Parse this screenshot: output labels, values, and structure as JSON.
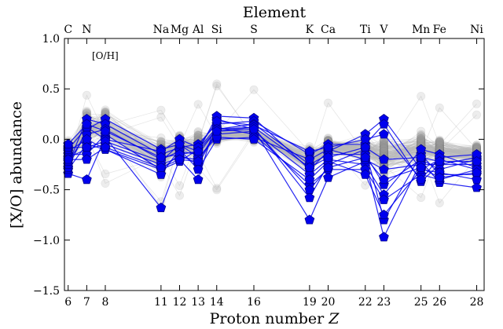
{
  "chart_data": {
    "type": "line",
    "title": "",
    "xlabel": "Proton number",
    "xlabel_var": "Z",
    "ylabel": "[X/O] abundance",
    "top_axis_label": "Element",
    "annotation": "[O/H]",
    "xlim": [
      5.8,
      28.4
    ],
    "ylim": [
      -1.5,
      1.0
    ],
    "x_ticks": [
      6,
      7,
      8,
      11,
      12,
      13,
      14,
      16,
      19,
      20,
      22,
      23,
      25,
      26,
      28
    ],
    "y_ticks": [
      -1.5,
      -1.0,
      -0.5,
      0.0,
      0.5,
      1.0
    ],
    "y_tick_labels": [
      "−1.5",
      "−1.0",
      "−0.5",
      "0.0",
      "0.5",
      "1.0"
    ],
    "top_ticks": [
      {
        "z": 6,
        "label": "C"
      },
      {
        "z": 7,
        "label": "N"
      },
      {
        "z": 11,
        "label": "Na"
      },
      {
        "z": 12,
        "label": "Mg"
      },
      {
        "z": 13,
        "label": "Al"
      },
      {
        "z": 14,
        "label": "Si"
      },
      {
        "z": 16,
        "label": "S"
      },
      {
        "z": 19,
        "label": "K"
      },
      {
        "z": 20,
        "label": "Ca"
      },
      {
        "z": 22,
        "label": "Ti"
      },
      {
        "z": 23,
        "label": "V"
      },
      {
        "z": 25,
        "label": "Mn"
      },
      {
        "z": 26,
        "label": "Fe"
      },
      {
        "z": 28,
        "label": "Ni"
      }
    ],
    "grid": false,
    "colors": {
      "highlight": "#0000ee",
      "highlight_edge": "#00008b",
      "background_line": "#b8b8b8",
      "background_marker": "#9a9a9a"
    },
    "background_population": {
      "count": 150,
      "mean": [
        -0.15,
        0.1,
        0.12,
        -0.17,
        -0.05,
        -0.1,
        0.05,
        0.05,
        -0.22,
        -0.08,
        -0.1,
        -0.16,
        -0.1,
        -0.12,
        -0.15
      ],
      "spread": [
        0.12,
        0.18,
        0.17,
        0.16,
        0.08,
        0.14,
        0.08,
        0.07,
        0.14,
        0.09,
        0.13,
        0.17,
        0.16,
        0.11,
        0.11
      ]
    },
    "highlighted_series": [
      {
        "values": [
          -0.34,
          -0.4,
          0.02,
          -0.68,
          -0.2,
          -0.4,
          0.2,
          0.1,
          -0.8,
          -0.38,
          -0.22,
          -0.97,
          -0.22,
          -0.43,
          -0.48
        ]
      },
      {
        "values": [
          -0.3,
          -0.05,
          -0.1,
          -0.3,
          -0.15,
          -0.25,
          0.08,
          0.12,
          -0.58,
          -0.25,
          -0.1,
          -0.8,
          -0.15,
          -0.35,
          -0.35
        ]
      },
      {
        "values": [
          -0.28,
          0.1,
          0.2,
          -0.1,
          -0.05,
          -0.12,
          0.23,
          0.21,
          -0.3,
          -0.12,
          0.05,
          0.2,
          -0.3,
          -0.2,
          -0.3
        ]
      },
      {
        "values": [
          -0.25,
          0.2,
          0.15,
          -0.15,
          -0.08,
          -0.05,
          0.15,
          0.18,
          -0.15,
          -0.05,
          -0.05,
          0.15,
          -0.42,
          -0.25,
          -0.25
        ]
      },
      {
        "values": [
          -0.22,
          0.05,
          0.1,
          -0.2,
          -0.12,
          -0.15,
          0.1,
          0.15,
          -0.25,
          -0.15,
          -0.15,
          -0.45,
          -0.2,
          -0.3,
          -0.2
        ]
      },
      {
        "values": [
          -0.18,
          -0.1,
          -0.05,
          -0.25,
          -0.18,
          -0.2,
          0.05,
          0.08,
          -0.35,
          -0.2,
          -0.25,
          -0.55,
          -0.1,
          -0.15,
          -0.28
        ]
      },
      {
        "values": [
          -0.15,
          -0.15,
          0.05,
          -0.3,
          -0.22,
          -0.1,
          0.12,
          0.05,
          -0.45,
          -0.3,
          -0.3,
          -0.6,
          -0.35,
          -0.4,
          -0.3
        ]
      },
      {
        "values": [
          -0.12,
          0.0,
          -0.1,
          -0.35,
          -0.1,
          -0.3,
          0.0,
          0.02,
          -0.2,
          -0.1,
          -0.2,
          -0.3,
          -0.25,
          -0.25,
          -0.18
        ]
      },
      {
        "values": [
          -0.1,
          0.12,
          0.0,
          -0.12,
          0.0,
          -0.08,
          0.18,
          0.14,
          -0.12,
          -0.08,
          0.0,
          0.05,
          -0.4,
          -0.18,
          -0.15
        ]
      },
      {
        "values": [
          -0.08,
          -0.08,
          -0.02,
          -0.22,
          -0.05,
          -0.18,
          0.02,
          0.0,
          -0.4,
          -0.22,
          -0.35,
          -0.75,
          -0.3,
          -0.33,
          -0.4
        ]
      },
      {
        "values": [
          -0.05,
          0.15,
          0.08,
          -0.18,
          -0.15,
          -0.12,
          0.1,
          0.12,
          -0.28,
          -0.18,
          -0.08,
          -0.2,
          -0.18,
          -0.22,
          -0.22
        ]
      },
      {
        "values": [
          -0.2,
          -0.2,
          -0.08,
          -0.28,
          -0.2,
          -0.22,
          0.08,
          0.1,
          -0.5,
          -0.28,
          -0.18,
          -0.4,
          -0.28,
          -0.38,
          -0.33
        ]
      }
    ]
  }
}
